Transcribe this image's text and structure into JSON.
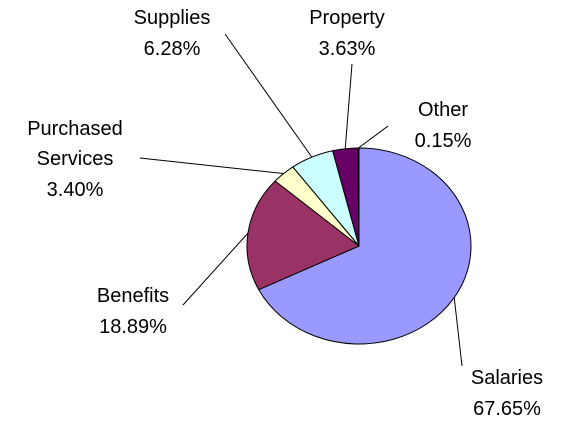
{
  "chart_data": {
    "type": "pie",
    "categories": [
      "Salaries",
      "Benefits",
      "Purchased Services",
      "Supplies",
      "Property",
      "Other"
    ],
    "values": [
      67.65,
      18.89,
      3.4,
      6.28,
      3.63,
      0.15
    ],
    "value_labels": [
      "67.65%",
      "18.89%",
      "3.40%",
      "6.28%",
      "3.63%",
      "0.15%"
    ],
    "colors": [
      "#9999ff",
      "#993366",
      "#ffffcc",
      "#ccffff",
      "#660066",
      "#ff8080"
    ]
  }
}
